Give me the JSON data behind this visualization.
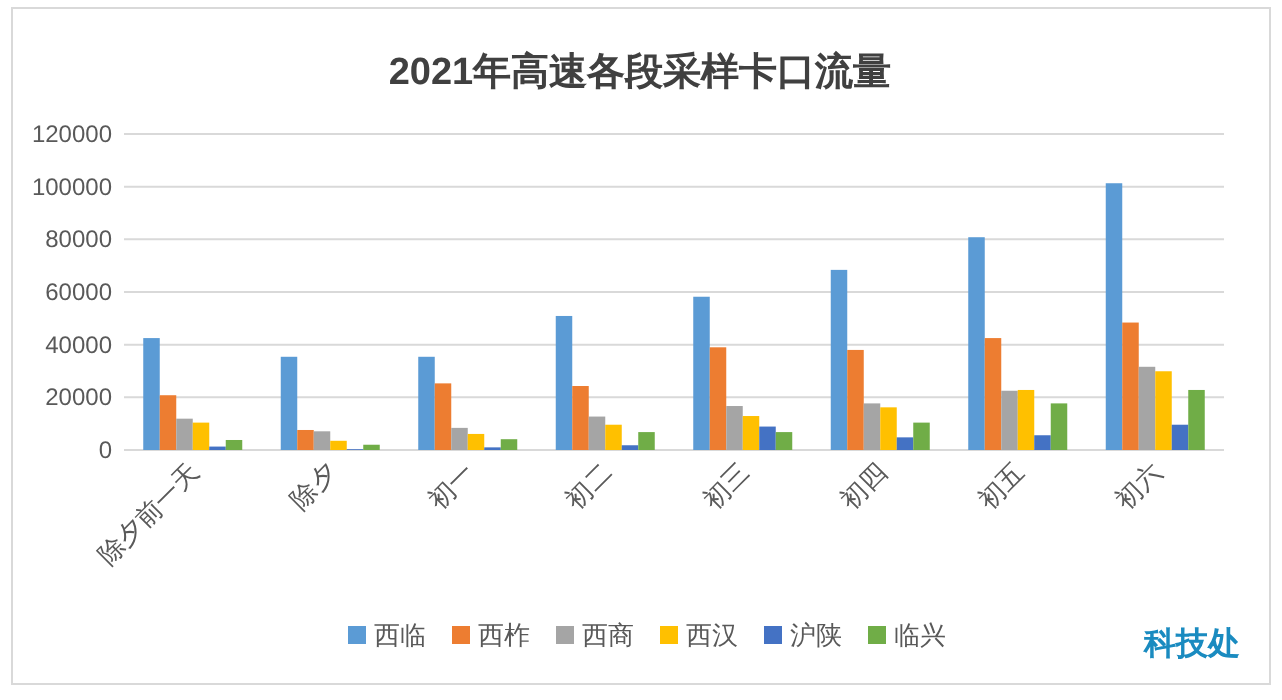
{
  "chart_data": {
    "type": "bar",
    "title": "2021年高速各段采样卡口流量",
    "categories": [
      "除夕前一天",
      "除夕",
      "初一",
      "初二",
      "初三",
      "初四",
      "初五",
      "初六"
    ],
    "series": [
      {
        "name": "西临",
        "color": "#5b9bd5",
        "values": [
          42500,
          35400,
          35400,
          50900,
          58200,
          68400,
          80800,
          101300
        ]
      },
      {
        "name": "西柞",
        "color": "#ed7d31",
        "values": [
          20800,
          7600,
          25300,
          24300,
          39000,
          38000,
          42500,
          48400
        ]
      },
      {
        "name": "西商",
        "color": "#a5a5a5",
        "values": [
          11900,
          7100,
          8400,
          12700,
          16700,
          17700,
          22500,
          31600
        ]
      },
      {
        "name": "西汉",
        "color": "#ffc000",
        "values": [
          10400,
          3500,
          6100,
          9600,
          12900,
          16200,
          22800,
          29900
        ]
      },
      {
        "name": "沪陕",
        "color": "#4472c4",
        "values": [
          1300,
          300,
          1000,
          1800,
          8900,
          4800,
          5600,
          9600
        ]
      },
      {
        "name": "临兴",
        "color": "#70ad47",
        "values": [
          3800,
          2000,
          4100,
          6800,
          6800,
          10400,
          17700,
          22800
        ]
      }
    ],
    "ylim": [
      0,
      120000
    ],
    "yticks": [
      0,
      20000,
      40000,
      60000,
      80000,
      100000,
      120000
    ],
    "grid": "y",
    "legend": "bottom",
    "annotations": [
      "科技处"
    ]
  }
}
